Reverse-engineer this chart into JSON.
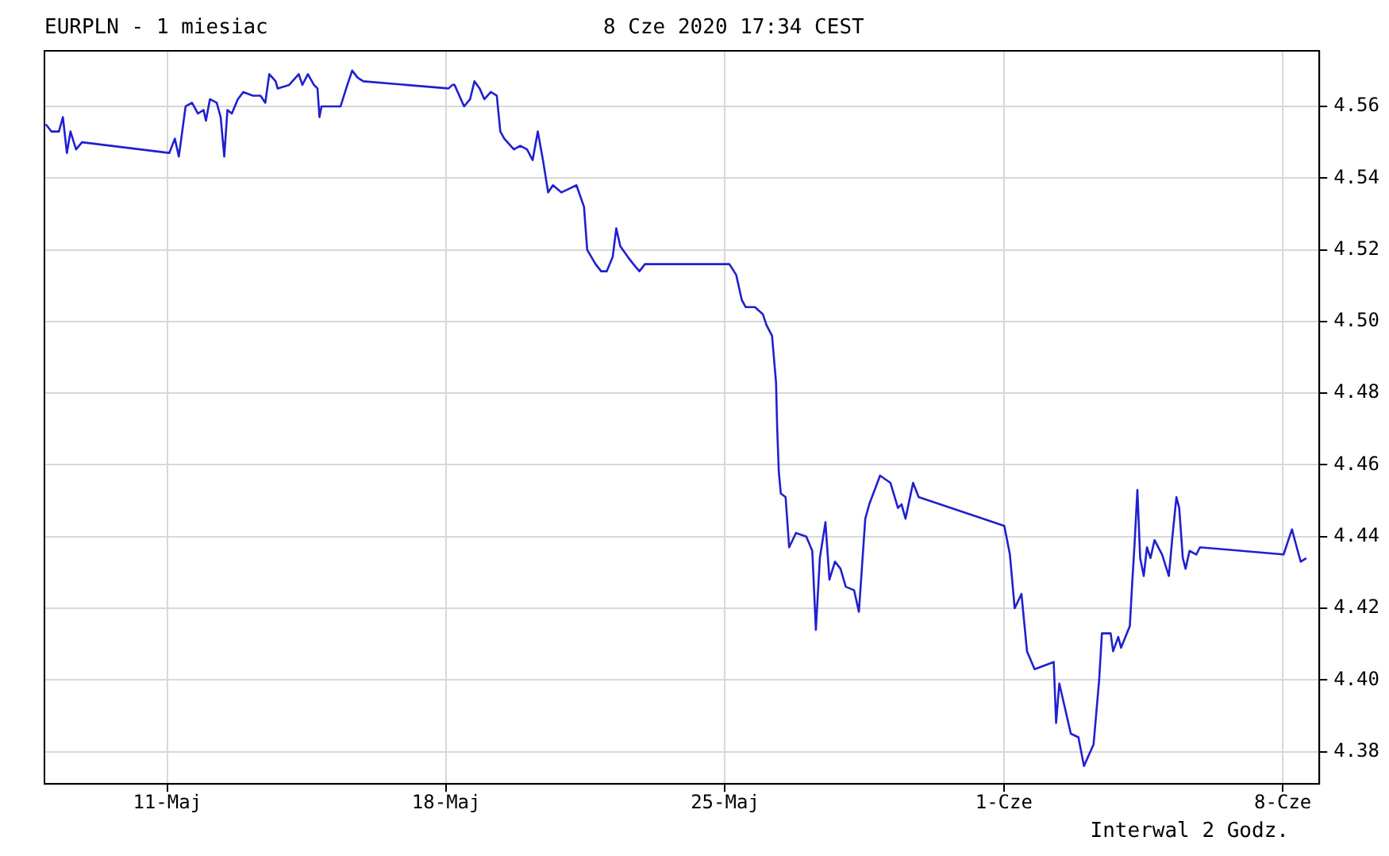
{
  "chart_data": {
    "type": "line",
    "title": "EURPLN - 1 miesiac",
    "subtitle": "8 Cze 2020 17:34 CEST",
    "annotations": [
      "Interwal 2 Godz."
    ],
    "x": [
      "2020-05-07T22:48",
      "2020-05-08T02:10",
      "2020-05-08T06:43",
      "2020-05-08T09:07",
      "2020-05-08T11:31",
      "2020-05-08T13:41",
      "2020-05-08T17:02",
      "2020-05-08T20:38",
      "2020-05-11T01:12",
      "2020-05-11T04:34",
      "2020-05-11T06:58",
      "2020-05-11T11:02",
      "2020-05-11T14:53",
      "2020-05-11T18:29",
      "2020-05-11T21:50",
      "2020-05-11T23:17",
      "2020-05-12T01:41",
      "2020-05-12T05:46",
      "2020-05-12T08:10",
      "2020-05-12T10:19",
      "2020-05-12T12:14",
      "2020-05-12T14:53",
      "2020-05-12T18:29",
      "2020-05-12T21:50",
      "2020-05-13T03:36",
      "2020-05-13T08:10",
      "2020-05-13T11:02",
      "2020-05-13T13:26",
      "2020-05-13T17:17",
      "2020-05-13T18:29",
      "2020-05-14T01:26",
      "2020-05-14T07:12",
      "2020-05-14T09:22",
      "2020-05-14T12:43",
      "2020-05-14T16:19",
      "2020-05-14T18:29",
      "2020-05-14T19:41",
      "2020-05-14T20:53",
      "2020-05-15T08:24",
      "2020-05-15T11:46",
      "2020-05-15T15:22",
      "2020-05-15T18:43",
      "2020-05-15T22:05",
      "2020-05-18T01:26",
      "2020-05-18T03:50",
      "2020-05-18T05:02",
      "2020-05-18T10:48",
      "2020-05-18T14:24",
      "2020-05-18T17:02",
      "2020-05-18T20:10",
      "2020-05-18T23:02",
      "2020-05-19T02:53",
      "2020-05-19T06:29",
      "2020-05-19T08:38",
      "2020-05-19T11:02",
      "2020-05-19T16:48",
      "2020-05-19T20:38",
      "2020-05-20T00:43",
      "2020-05-20T04:05",
      "2020-05-20T07:12",
      "2020-05-20T10:19",
      "2020-05-20T13:26",
      "2020-05-20T16:19",
      "2020-05-20T21:22",
      "2020-05-21T01:55",
      "2020-05-21T06:29",
      "2020-05-21T11:02",
      "2020-05-21T12:58",
      "2020-05-21T18:00",
      "2020-05-21T21:22",
      "2020-05-22T00:43",
      "2020-05-22T04:19",
      "2020-05-22T06:29",
      "2020-05-22T08:53",
      "2020-05-22T13:26",
      "2020-05-22T16:48",
      "2020-05-22T20:24",
      "2020-05-22T23:46",
      "2020-05-25T02:38",
      "2020-05-25T06:43",
      "2020-05-25T10:05",
      "2020-05-25T12:29",
      "2020-05-25T18:00",
      "2020-05-25T22:48",
      "2020-05-26T00:58",
      "2020-05-26T04:19",
      "2020-05-26T06:43",
      "2020-05-26T07:26",
      "2020-05-26T08:24",
      "2020-05-26T09:36",
      "2020-05-26T12:29",
      "2020-05-26T14:38",
      "2020-05-26T18:43",
      "2020-05-27T00:58",
      "2020-05-27T04:34",
      "2020-05-27T06:43",
      "2020-05-27T09:07",
      "2020-05-27T12:29",
      "2020-05-27T14:53",
      "2020-05-27T18:14",
      "2020-05-27T21:36",
      "2020-05-28T00:43",
      "2020-05-28T05:46",
      "2020-05-28T08:38",
      "2020-05-28T12:29",
      "2020-05-28T14:53",
      "2020-05-28T21:22",
      "2020-05-29T03:36",
      "2020-05-29T08:10",
      "2020-05-29T10:19",
      "2020-05-29T12:43",
      "2020-05-29T17:17",
      "2020-05-29T20:38",
      "2020-06-01T00:14",
      "2020-06-01T03:36",
      "2020-06-01T06:29",
      "2020-06-01T10:34",
      "2020-06-01T13:55",
      "2020-06-01T18:29",
      "2020-06-02T06:00",
      "2020-06-02T07:26",
      "2020-06-02T09:22",
      "2020-06-02T16:19",
      "2020-06-02T20:53",
      "2020-06-03T00:14",
      "2020-06-03T06:00",
      "2020-06-03T09:22",
      "2020-06-03T11:02",
      "2020-06-03T16:19",
      "2020-06-03T17:46",
      "2020-06-03T20:53",
      "2020-06-03T22:34",
      "2020-06-04T03:50",
      "2020-06-04T05:17",
      "2020-06-04T06:43",
      "2020-06-04T08:24",
      "2020-06-04T10:05",
      "2020-06-04T12:14",
      "2020-06-04T14:10",
      "2020-06-04T16:19",
      "2020-06-04T18:43",
      "2020-06-04T23:17",
      "2020-06-05T03:22",
      "2020-06-05T05:31",
      "2020-06-05T07:55",
      "2020-06-05T09:36",
      "2020-06-05T11:46",
      "2020-06-05T13:26",
      "2020-06-05T15:50",
      "2020-06-05T19:55",
      "2020-06-05T22:05",
      "2020-06-08T00:29",
      "2020-06-08T05:31",
      "2020-06-08T08:24",
      "2020-06-08T10:48",
      "2020-06-08T14:10"
    ],
    "series": [
      {
        "color": "#2020d0",
        "values": [
          4.555,
          4.553,
          4.553,
          4.557,
          4.547,
          4.553,
          4.548,
          4.55,
          4.547,
          4.551,
          4.546,
          4.56,
          4.561,
          4.558,
          4.559,
          4.556,
          4.562,
          4.561,
          4.557,
          4.546,
          4.559,
          4.558,
          4.562,
          4.564,
          4.563,
          4.563,
          4.561,
          4.569,
          4.567,
          4.565,
          4.566,
          4.569,
          4.566,
          4.569,
          4.566,
          4.565,
          4.557,
          4.56,
          4.56,
          4.565,
          4.57,
          4.568,
          4.567,
          4.565,
          4.566,
          4.566,
          4.56,
          4.562,
          4.567,
          4.565,
          4.562,
          4.564,
          4.563,
          4.553,
          4.551,
          4.548,
          4.549,
          4.548,
          4.545,
          4.553,
          4.545,
          4.536,
          4.538,
          4.536,
          4.537,
          4.538,
          4.532,
          4.52,
          4.516,
          4.514,
          4.514,
          4.518,
          4.526,
          4.521,
          4.518,
          4.516,
          4.514,
          4.516,
          4.516,
          4.513,
          4.506,
          4.504,
          4.504,
          4.502,
          4.499,
          4.496,
          4.483,
          4.47,
          4.458,
          4.452,
          4.451,
          4.437,
          4.441,
          4.44,
          4.436,
          4.414,
          4.434,
          4.444,
          4.428,
          4.433,
          4.431,
          4.426,
          4.425,
          4.419,
          4.445,
          4.449,
          4.457,
          4.455,
          4.448,
          4.449,
          4.445,
          4.455,
          4.451,
          4.443,
          4.435,
          4.42,
          4.424,
          4.408,
          4.403,
          4.405,
          4.388,
          4.399,
          4.385,
          4.384,
          4.376,
          4.382,
          4.4,
          4.413,
          4.413,
          4.408,
          4.412,
          4.409,
          4.415,
          4.427,
          4.438,
          4.453,
          4.434,
          4.429,
          4.437,
          4.434,
          4.439,
          4.435,
          4.429,
          4.44,
          4.451,
          4.448,
          4.434,
          4.431,
          4.436,
          4.435,
          4.437,
          4.435,
          4.442,
          4.437,
          4.433,
          4.434
        ]
      }
    ],
    "xlim": [
      "2020-05-07T22:00",
      "2020-06-08T22:00"
    ],
    "xticks": [
      {
        "value": "2020-05-11",
        "label": "11-Maj"
      },
      {
        "value": "2020-05-18",
        "label": "18-Maj"
      },
      {
        "value": "2020-05-25",
        "label": "25-Maj"
      },
      {
        "value": "2020-06-01",
        "label": "1-Cze"
      },
      {
        "value": "2020-06-08",
        "label": "8-Cze"
      }
    ],
    "ylim": [
      4.371,
      4.5755
    ],
    "yticks": [
      {
        "value": 4.38,
        "label": "4.38"
      },
      {
        "value": 4.4,
        "label": "4.40"
      },
      {
        "value": 4.42,
        "label": "4.42"
      },
      {
        "value": 4.44,
        "label": "4.44"
      },
      {
        "value": 4.46,
        "label": "4.46"
      },
      {
        "value": 4.48,
        "label": "4.48"
      },
      {
        "value": 4.5,
        "label": "4.50"
      },
      {
        "value": 4.52,
        "label": "4.52"
      },
      {
        "value": 4.54,
        "label": "4.54"
      },
      {
        "value": 4.56,
        "label": "4.56"
      }
    ],
    "grid": true,
    "marker": "none",
    "line_style": "solid",
    "legend": false
  }
}
